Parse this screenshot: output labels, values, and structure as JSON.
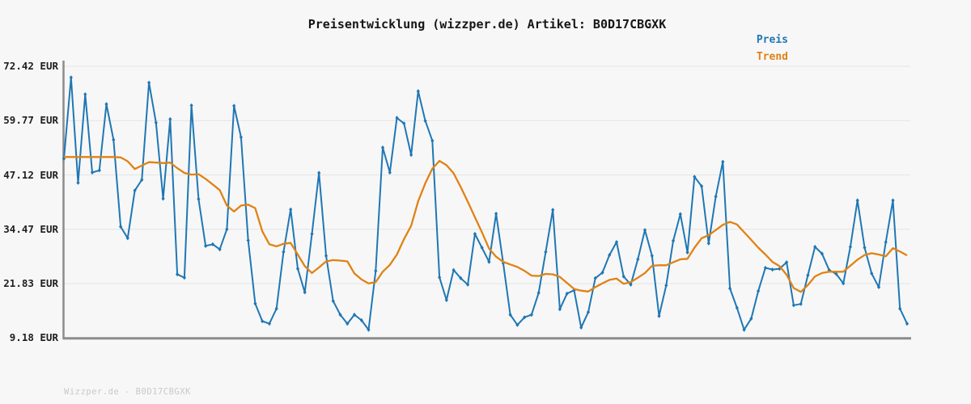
{
  "watermark": "Wizzper.de - B0D17CBGXK",
  "colors": {
    "background": "#f7f7f7",
    "grid": "#e4e4e4",
    "axis": "#8c8c8c",
    "price": "#1f77b4",
    "trend": "#e08214",
    "title_text": "#161616",
    "tick_text": "#1f1f1f",
    "watermark_text": "#c9c9c9"
  },
  "chart_data": {
    "type": "line",
    "title": "Preisentwicklung (wizzper.de) Artikel: B0D17CBGXK",
    "currency": "EUR",
    "grid": true,
    "legend_position": "top-right",
    "x_axis": {
      "tick_labels_visible": false
    },
    "ylim": [
      9.18,
      72.42
    ],
    "y_ticks": [
      {
        "label": "72.42 EUR",
        "value": 72.42
      },
      {
        "label": "59.77 EUR",
        "value": 59.77
      },
      {
        "label": "47.12 EUR",
        "value": 47.12
      },
      {
        "label": "34.47 EUR",
        "value": 34.47
      },
      {
        "label": "21.83 EUR",
        "value": 21.83
      },
      {
        "label": "9.18 EUR",
        "value": 9.18
      }
    ],
    "series": [
      {
        "name": "Preis",
        "color": "#1f77b4",
        "marker": "diamond",
        "values": [
          50.9,
          69.8,
          45.3,
          65.9,
          47.7,
          48.2,
          63.6,
          55.3,
          35.1,
          32.4,
          43.5,
          46.0,
          68.6,
          59.3,
          41.6,
          60.1,
          24.0,
          23.2,
          63.3,
          41.5,
          30.6,
          31.0,
          29.8,
          34.5,
          63.2,
          55.9,
          31.9,
          17.2,
          13.1,
          12.5,
          16.0,
          29.2,
          39.1,
          25.3,
          19.8,
          33.4,
          47.6,
          28.3,
          17.8,
          14.6,
          12.5,
          14.6,
          13.3,
          11.1,
          24.8,
          53.5,
          47.7,
          60.4,
          59.1,
          51.8,
          66.6,
          59.7,
          55.1,
          23.3,
          18.0,
          25.0,
          23.1,
          21.6,
          33.4,
          30.2,
          26.9,
          38.1,
          26.6,
          14.6,
          12.2,
          14.0,
          14.6,
          19.7,
          29.2,
          39.0,
          15.9,
          19.5,
          20.3,
          11.6,
          15.2,
          23.1,
          24.4,
          28.5,
          31.5,
          23.5,
          21.6,
          27.5,
          34.3,
          28.3,
          14.3,
          21.4,
          31.8,
          38.0,
          29.1,
          46.7,
          44.5,
          31.2,
          42.1,
          50.2,
          20.7,
          16.2,
          11.1,
          13.7,
          20.1,
          25.5,
          25.1,
          25.3,
          26.8,
          16.8,
          17.1,
          23.8,
          30.4,
          28.8,
          25.0,
          24.1,
          21.9,
          30.4,
          41.2,
          30.2,
          24.2,
          21.0,
          31.5,
          41.2,
          16.0,
          12.5
        ]
      },
      {
        "name": "Trend",
        "color": "#e08214",
        "marker": "none",
        "values": [
          51.3,
          51.3,
          51.3,
          51.3,
          51.3,
          51.3,
          51.3,
          51.3,
          51.2,
          50.3,
          48.5,
          49.3,
          50.1,
          50.0,
          49.9,
          50.0,
          48.7,
          47.6,
          47.2,
          47.3,
          46.2,
          44.9,
          43.6,
          40.0,
          38.6,
          40.0,
          40.2,
          39.4,
          34.0,
          31.0,
          30.5,
          31.1,
          31.3,
          28.6,
          25.9,
          24.3,
          25.6,
          27.0,
          27.3,
          27.2,
          27.0,
          24.2,
          22.8,
          21.9,
          22.2,
          24.6,
          26.2,
          28.6,
          32.2,
          35.3,
          41.0,
          45.2,
          48.6,
          50.4,
          49.4,
          47.5,
          44.3,
          40.9,
          37.3,
          33.8,
          30.0,
          28.1,
          26.9,
          26.3,
          25.7,
          24.8,
          23.7,
          23.6,
          24.1,
          24.0,
          23.4,
          22.0,
          20.6,
          20.2,
          20.0,
          21.0,
          21.9,
          22.7,
          23.0,
          21.8,
          22.2,
          23.2,
          24.3,
          26.0,
          26.1,
          26.1,
          26.8,
          27.5,
          27.6,
          30.2,
          32.4,
          33.1,
          34.3,
          35.5,
          36.2,
          35.6,
          33.8,
          32.0,
          30.2,
          28.6,
          26.9,
          25.9,
          23.9,
          20.8,
          19.9,
          21.5,
          23.5,
          24.3,
          24.6,
          24.6,
          24.6,
          26.0,
          27.4,
          28.5,
          28.9,
          28.6,
          28.2,
          30.1,
          29.3,
          28.4
        ]
      }
    ]
  }
}
